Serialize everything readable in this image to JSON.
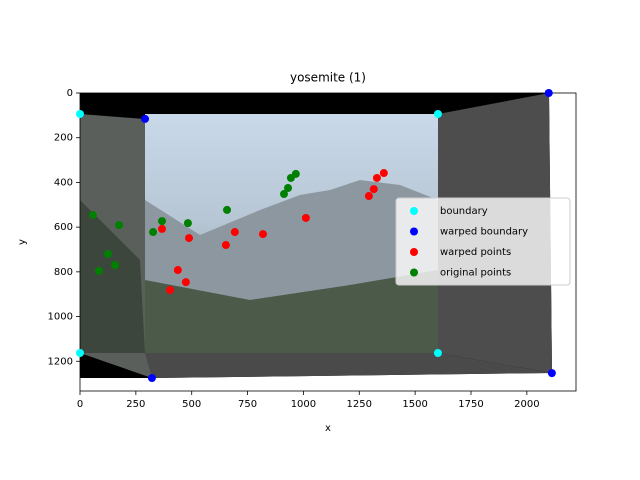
{
  "chart_data": {
    "type": "scatter",
    "title": "yosemite (1)",
    "x_label": "x",
    "y_label": "y",
    "xlim": [
      0,
      2220
    ],
    "ylim": [
      1333,
      0
    ],
    "xticks": [
      0,
      250,
      500,
      750,
      1000,
      1250,
      1500,
      1750,
      2000
    ],
    "yticks": [
      0,
      200,
      400,
      600,
      800,
      1000,
      1200
    ],
    "legend": "center right",
    "series": [
      {
        "name": "boundary",
        "color": "#00ffff",
        "x": [
          0,
          1602,
          0,
          1602
        ],
        "y": [
          94,
          94,
          1163,
          1163
        ]
      },
      {
        "name": "warped boundary",
        "color": "#0000ff",
        "x": [
          291,
          2098,
          322,
          2112
        ],
        "y": [
          116,
          0,
          1275,
          1253
        ]
      },
      {
        "name": "warped points",
        "color": "#ff0000",
        "x": [
          367,
          438,
          488,
          403,
          474,
          653,
          693,
          819,
          1011,
          1293,
          1315,
          1329,
          1360
        ],
        "y": [
          608,
          792,
          649,
          881,
          846,
          680,
          622,
          631,
          559,
          461,
          430,
          380,
          358
        ]
      },
      {
        "name": "original points",
        "color": "#008000",
        "x": [
          58,
          125,
          85,
          157,
          175,
          327,
          367,
          483,
          658,
          913,
          931,
          944,
          966
        ],
        "y": [
          546,
          720,
          796,
          770,
          591,
          622,
          573,
          582,
          523,
          452,
          425,
          380,
          362
        ]
      }
    ]
  }
}
